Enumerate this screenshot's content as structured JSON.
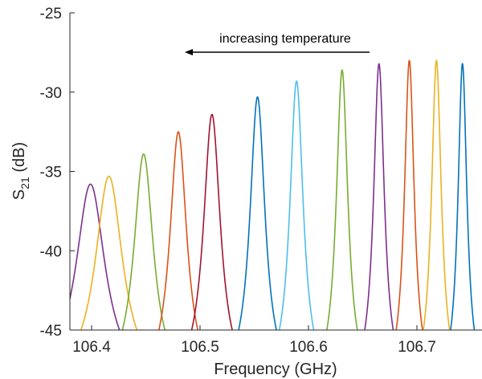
{
  "chart_data": {
    "type": "line",
    "title": "",
    "xlabel": "Frequency (GHz)",
    "ylabel_base": "S",
    "ylabel_sub": "21",
    "ylabel_unit": " (dB)",
    "xlim": [
      106.38,
      106.76
    ],
    "ylim": [
      -45,
      -25
    ],
    "xticks": [
      106.4,
      106.5,
      106.6,
      106.7
    ],
    "xtick_labels": [
      "106.4",
      "106.5",
      "106.6",
      "106.7"
    ],
    "yticks": [
      -45,
      -40,
      -35,
      -30,
      -25
    ],
    "ytick_labels": [
      "-45",
      "-40",
      "-35",
      "-30",
      "-25"
    ],
    "grid": false,
    "legend": "none",
    "annotation": {
      "text": "increasing temperature",
      "arrow_direction": "left"
    },
    "series_shape": "lorentzian resonance peak",
    "series": [
      {
        "color": "#7E2F8E",
        "center": 106.399,
        "peak": -35.8,
        "half_width": 0.0165,
        "base": -48.5,
        "x_range": [
          106.38,
          106.44
        ]
      },
      {
        "color": "#EDB120",
        "center": 106.416,
        "peak": -35.3,
        "half_width": 0.0155,
        "base": -48.5,
        "x_range": [
          106.38,
          106.45
        ]
      },
      {
        "color": "#77AC30",
        "center": 106.448,
        "peak": -33.9,
        "half_width": 0.011,
        "base": -48.5,
        "x_range": [
          106.425,
          106.475
        ]
      },
      {
        "color": "#D95319",
        "center": 106.48,
        "peak": -32.5,
        "half_width": 0.0095,
        "base": -48.5,
        "x_range": [
          106.448,
          106.51
        ]
      },
      {
        "color": "#A2142F",
        "center": 106.511,
        "peak": -31.4,
        "half_width": 0.0095,
        "base": -48.5,
        "x_range": [
          106.47,
          106.538
        ]
      },
      {
        "color": "#0072BD",
        "center": 106.553,
        "peak": -30.3,
        "half_width": 0.0085,
        "base": -48.5,
        "x_range": [
          106.52,
          106.58
        ]
      },
      {
        "color": "#4DBEEE",
        "center": 106.589,
        "peak": -29.3,
        "half_width": 0.0075,
        "base": -48.5,
        "x_range": [
          106.565,
          106.613
        ]
      },
      {
        "color": "#77AC30",
        "center": 106.631,
        "peak": -28.6,
        "half_width": 0.0065,
        "base": -48.5,
        "x_range": [
          106.598,
          106.655
        ]
      },
      {
        "color": "#7E2F8E",
        "center": 106.665,
        "peak": -28.2,
        "half_width": 0.006,
        "base": -48.5,
        "x_range": [
          106.638,
          106.688
        ]
      },
      {
        "color": "#D95319",
        "center": 106.693,
        "peak": -28.0,
        "half_width": 0.0055,
        "base": -48.5,
        "x_range": [
          106.675,
          106.713
        ]
      },
      {
        "color": "#EDB120",
        "center": 106.718,
        "peak": -28.0,
        "half_width": 0.0055,
        "base": -48.5,
        "x_range": [
          106.7,
          106.735
        ]
      },
      {
        "color": "#0072BD",
        "center": 106.742,
        "peak": -28.2,
        "half_width": 0.005,
        "base": -48.5,
        "x_range": [
          106.728,
          106.76
        ]
      }
    ]
  }
}
